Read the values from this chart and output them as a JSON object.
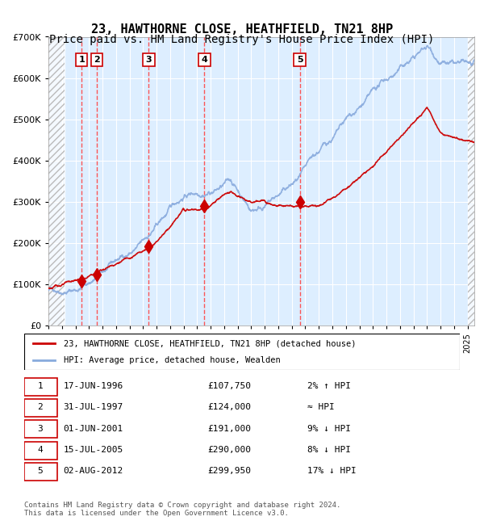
{
  "title": "23, HAWTHORNE CLOSE, HEATHFIELD, TN21 8HP",
  "subtitle": "Price paid vs. HM Land Registry's House Price Index (HPI)",
  "title_fontsize": 11,
  "subtitle_fontsize": 10,
  "background_color": "#ffffff",
  "plot_bg_color": "#ddeeff",
  "hatch_color": "#cccccc",
  "grid_color": "#ffffff",
  "red_line_color": "#cc0000",
  "blue_line_color": "#88aadd",
  "dashed_line_color": "#ff4444",
  "ylim": [
    0,
    700000
  ],
  "yticks": [
    0,
    100000,
    200000,
    300000,
    400000,
    500000,
    600000,
    700000
  ],
  "ytick_labels": [
    "£0",
    "£100K",
    "£200K",
    "£300K",
    "£400K",
    "£500K",
    "£600K",
    "£700K"
  ],
  "sales": [
    {
      "num": 1,
      "date_num": 1996.46,
      "price": 107750,
      "label": "1"
    },
    {
      "num": 2,
      "date_num": 1997.58,
      "price": 124000,
      "label": "2"
    },
    {
      "num": 3,
      "date_num": 2001.42,
      "price": 191000,
      "label": "3"
    },
    {
      "num": 4,
      "date_num": 2005.54,
      "price": 290000,
      "label": "4"
    },
    {
      "num": 5,
      "date_num": 2012.59,
      "price": 299950,
      "label": "5"
    }
  ],
  "legend_entries": [
    {
      "label": "23, HAWTHORNE CLOSE, HEATHFIELD, TN21 8HP (detached house)",
      "color": "#cc0000"
    },
    {
      "label": "HPI: Average price, detached house, Wealden",
      "color": "#88aadd"
    }
  ],
  "table_rows": [
    {
      "num": 1,
      "date": "17-JUN-1996",
      "price": "£107,750",
      "info": "2% ↑ HPI"
    },
    {
      "num": 2,
      "date": "31-JUL-1997",
      "price": "£124,000",
      "info": "≈ HPI"
    },
    {
      "num": 3,
      "date": "01-JUN-2001",
      "price": "£191,000",
      "info": "9% ↓ HPI"
    },
    {
      "num": 4,
      "date": "15-JUL-2005",
      "price": "£290,000",
      "info": "8% ↓ HPI"
    },
    {
      "num": 5,
      "date": "02-AUG-2012",
      "price": "£299,950",
      "info": "17% ↓ HPI"
    }
  ],
  "footer": "Contains HM Land Registry data © Crown copyright and database right 2024.\nThis data is licensed under the Open Government Licence v3.0.",
  "xstart": 1994,
  "xend": 2025.5
}
